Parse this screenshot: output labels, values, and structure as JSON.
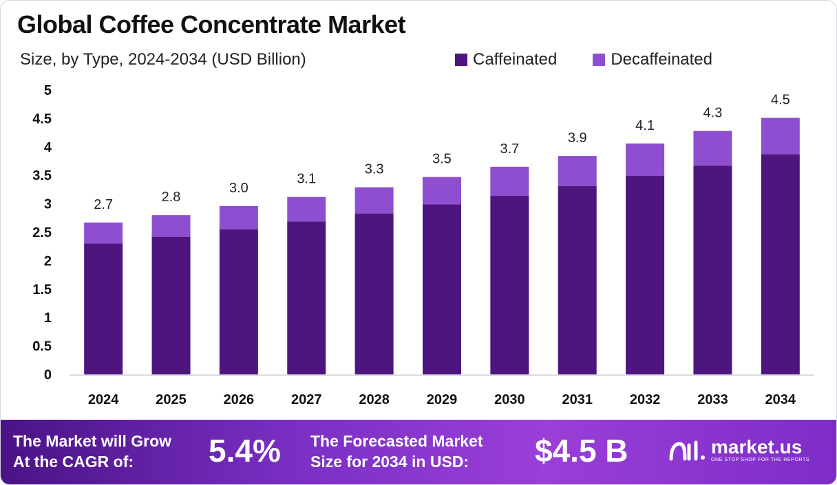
{
  "title": "Global Coffee Concentrate Market",
  "subtitle": "Size, by Type, 2024-2034 (USD Billion)",
  "colors": {
    "caffeinated": "#4e157f",
    "decaffeinated": "#8d4fcf",
    "axis": "#cfcfcf",
    "text": "#111111"
  },
  "chart_data": {
    "type": "bar",
    "stacked": true,
    "categories": [
      "2024",
      "2025",
      "2026",
      "2027",
      "2028",
      "2029",
      "2030",
      "2031",
      "2032",
      "2033",
      "2034"
    ],
    "series": [
      {
        "name": "Caffeinated",
        "values": [
          2.3,
          2.42,
          2.55,
          2.69,
          2.83,
          2.99,
          3.14,
          3.31,
          3.49,
          3.67,
          3.87
        ]
      },
      {
        "name": "Decaffeinated",
        "values": [
          0.37,
          0.38,
          0.41,
          0.43,
          0.46,
          0.48,
          0.51,
          0.53,
          0.57,
          0.61,
          0.64
        ]
      }
    ],
    "total_labels": [
      "2.7",
      "2.8",
      "3.0",
      "3.1",
      "3.3",
      "3.5",
      "3.7",
      "3.9",
      "4.1",
      "4.3",
      "4.5"
    ],
    "y_ticks": [
      "0",
      "0.5",
      "1",
      "1.5",
      "2",
      "2.5",
      "3",
      "3.5",
      "4",
      "4.5",
      "5"
    ],
    "ylim": [
      0,
      5
    ],
    "xlabel": "",
    "ylabel": "",
    "legend_position": "top-right",
    "grid": false
  },
  "footer": {
    "cagr_label_line1": "The Market will Grow",
    "cagr_label_line2": "At the CAGR of:",
    "cagr_value": "5.4%",
    "forecast_label_line1": "The Forecasted Market",
    "forecast_label_line2": "Size for 2034 in USD:",
    "forecast_value": "$4.5 B",
    "brand_name": "market.us",
    "brand_tagline": "ONE STOP SHOP FOR THE REPORTS"
  }
}
